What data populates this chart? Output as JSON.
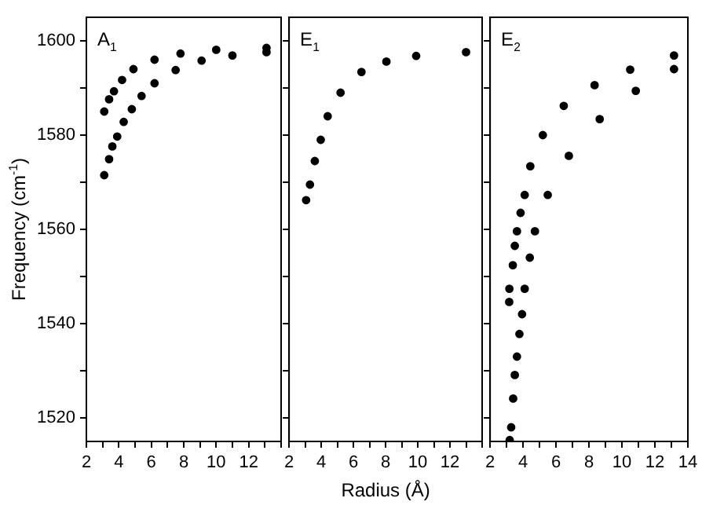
{
  "chart_data": [
    {
      "type": "scatter",
      "annotations": [
        "A$_{1}$"
      ],
      "ylabel": "Frequency (cm$^{-1}$)",
      "marker": "circle",
      "xlim": [
        2,
        14
      ],
      "xticks": [
        2,
        {
          "value": 3,
          "label": null
        },
        4,
        {
          "value": 5,
          "label": null
        },
        6,
        {
          "value": 7,
          "label": null
        },
        8,
        {
          "value": 9,
          "label": null
        },
        10,
        {
          "value": 11,
          "label": null
        },
        12,
        {
          "value": 13,
          "label": null
        },
        {
          "value": 14,
          "label": null
        }
      ],
      "ylim": [
        1515,
        1605
      ],
      "yticks": [
        1520,
        {
          "value": 1530,
          "label": null
        },
        1540,
        {
          "value": 1550,
          "label": null
        },
        1560,
        {
          "value": 1570,
          "label": null
        },
        1580,
        {
          "value": 1590,
          "label": null
        },
        1600
      ],
      "series": [
        {
          "color": "#000000",
          "x": [
            3.1,
            3.4,
            3.7,
            4.2,
            4.9,
            6.2,
            7.8,
            10,
            13.1
          ],
          "values": [
            1585,
            1587.6,
            1589.3,
            1591.7,
            1594,
            1596,
            1597.3,
            1598.1,
            1598.5
          ]
        },
        {
          "color": "#000000",
          "x": [
            3.1,
            3.4,
            3.6,
            3.9,
            4.3,
            4.8,
            5.4,
            6.2,
            7.5,
            9.1,
            11,
            13.1
          ],
          "values": [
            1571.5,
            1574.9,
            1577.6,
            1579.7,
            1582.8,
            1585.5,
            1588.3,
            1591,
            1593.8,
            1595.8,
            1596.9,
            1597.6
          ]
        }
      ]
    },
    {
      "type": "scatter",
      "annotations": [
        "E$_{1}$"
      ],
      "xlabel": "Radius (Å)",
      "marker": "circle",
      "tick_labels": "x",
      "xlim": [
        2,
        14
      ],
      "xticks": [
        2,
        {
          "value": 3,
          "label": null
        },
        4,
        {
          "value": 5,
          "label": null
        },
        6,
        {
          "value": 7,
          "label": null
        },
        8,
        {
          "value": 9,
          "label": null
        },
        10,
        {
          "value": 11,
          "label": null
        },
        12,
        {
          "value": 13,
          "label": null
        },
        {
          "value": 14,
          "label": null
        }
      ],
      "ylim": [
        1515,
        1605
      ],
      "yticks": [
        {
          "value": 1520,
          "label": null
        },
        {
          "value": 1530,
          "label": null
        },
        {
          "value": 1540,
          "label": null
        },
        {
          "value": 1550,
          "label": null
        },
        {
          "value": 1560,
          "label": null
        },
        {
          "value": 1570,
          "label": null
        },
        {
          "value": 1580,
          "label": null
        },
        {
          "value": 1590,
          "label": null
        },
        {
          "value": 1600,
          "label": null
        }
      ],
      "series": [
        {
          "color": "#000000",
          "x": [
            3.06,
            3.3,
            3.6,
            3.97,
            4.4,
            5.2,
            6.5,
            8.05,
            9.9,
            13
          ],
          "values": [
            1566.2,
            1569.5,
            1574.5,
            1579,
            1584,
            1589,
            1593.4,
            1595.6,
            1596.8,
            1597.6
          ]
        }
      ]
    },
    {
      "type": "scatter",
      "annotations": [
        "E$_{2}$"
      ],
      "marker": "circle",
      "tick_labels": "x",
      "xlim": [
        2,
        14
      ],
      "xticks": [
        2,
        {
          "value": 3,
          "label": null
        },
        4,
        {
          "value": 5,
          "label": null
        },
        6,
        {
          "value": 7,
          "label": null
        },
        8,
        {
          "value": 9,
          "label": null
        },
        10,
        {
          "value": 11,
          "label": null
        },
        12,
        {
          "value": 13,
          "label": null
        },
        14
      ],
      "ylim": [
        1515,
        1605
      ],
      "yticks": [
        {
          "value": 1520,
          "label": null
        },
        {
          "value": 1530,
          "label": null
        },
        {
          "value": 1540,
          "label": null
        },
        {
          "value": 1550,
          "label": null
        },
        {
          "value": 1560,
          "label": null
        },
        {
          "value": 1570,
          "label": null
        },
        {
          "value": 1580,
          "label": null
        },
        {
          "value": 1590,
          "label": null
        },
        {
          "value": 1600,
          "label": null
        }
      ],
      "series": [
        {
          "color": "#000000",
          "x": [
            3.16,
            3.17,
            3.38,
            3.5,
            3.63,
            3.85,
            4.1,
            4.44,
            5.2,
            6.47,
            8.34,
            10.5,
            13.16
          ],
          "values": [
            1544.6,
            1547.4,
            1552.4,
            1556.5,
            1559.6,
            1563.5,
            1567.3,
            1573.4,
            1580,
            1586.2,
            1590.6,
            1593.9,
            1596.9
          ]
        },
        {
          "color": "#000000",
          "x": [
            3.19,
            3.28,
            3.4,
            3.5,
            3.63,
            3.78,
            3.94,
            4.1,
            4.41,
            4.72,
            5.5,
            6.78,
            8.65,
            10.84,
            13.16
          ],
          "values": [
            1515.3,
            1518,
            1524.1,
            1529.1,
            1533,
            1537.8,
            1542,
            1547.4,
            1554,
            1559.6,
            1567.3,
            1575.6,
            1583.4,
            1589.4,
            1594
          ]
        }
      ]
    }
  ]
}
